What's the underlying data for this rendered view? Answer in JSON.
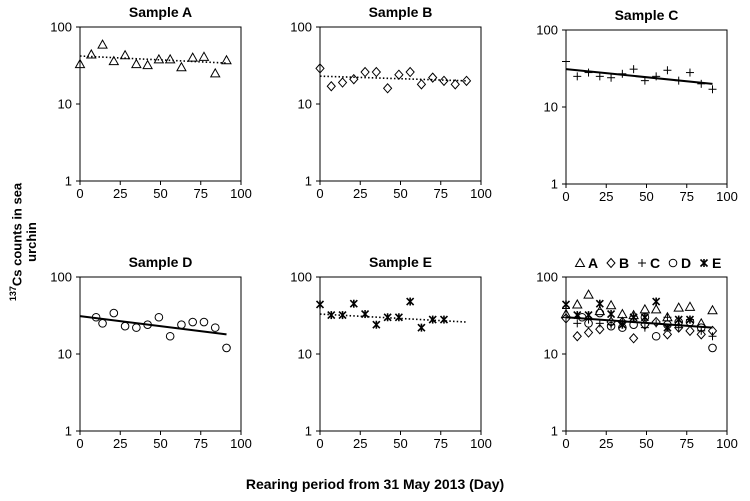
{
  "figure": {
    "ylabel_prefix": "137",
    "ylabel_text": "Cs counts in sea urchin",
    "xlabel": "Rearing period from 31 May 2013 (Day)"
  },
  "chart_data": [
    {
      "type": "scatter",
      "title": "Sample A",
      "series_key": "A",
      "marker": "triangle",
      "xlim": [
        0,
        100
      ],
      "ylim": [
        1,
        100
      ],
      "yscale": "log",
      "xticks": [
        0,
        25,
        50,
        75,
        100
      ],
      "yticks": [
        1,
        10,
        100
      ],
      "points": [
        [
          0,
          33
        ],
        [
          7,
          44
        ],
        [
          14,
          59
        ],
        [
          21,
          36
        ],
        [
          28,
          43
        ],
        [
          35,
          33
        ],
        [
          42,
          32
        ],
        [
          49,
          38
        ],
        [
          56,
          38
        ],
        [
          63,
          30
        ],
        [
          70,
          40
        ],
        [
          77,
          41
        ],
        [
          84,
          25
        ],
        [
          91,
          37
        ]
      ],
      "trend": {
        "style": "dotted",
        "from": [
          0,
          42
        ],
        "to": [
          91,
          34
        ]
      }
    },
    {
      "type": "scatter",
      "title": "Sample B",
      "series_key": "B",
      "marker": "diamond",
      "xlim": [
        0,
        100
      ],
      "ylim": [
        1,
        100
      ],
      "yscale": "log",
      "xticks": [
        0,
        25,
        50,
        75,
        100
      ],
      "yticks": [
        1,
        10,
        100
      ],
      "points": [
        [
          0,
          29
        ],
        [
          7,
          17
        ],
        [
          14,
          19
        ],
        [
          21,
          21
        ],
        [
          28,
          26
        ],
        [
          35,
          26
        ],
        [
          42,
          16
        ],
        [
          49,
          24
        ],
        [
          56,
          26
        ],
        [
          63,
          18
        ],
        [
          70,
          22
        ],
        [
          77,
          20
        ],
        [
          84,
          18
        ],
        [
          91,
          20
        ]
      ],
      "trend": {
        "style": "dotted",
        "from": [
          0,
          23
        ],
        "to": [
          91,
          20
        ]
      }
    },
    {
      "type": "scatter",
      "title": "Sample C",
      "series_key": "C",
      "marker": "plus",
      "xlim": [
        0,
        100
      ],
      "ylim": [
        1,
        100
      ],
      "yscale": "log",
      "xticks": [
        0,
        25,
        50,
        75,
        100
      ],
      "yticks": [
        1,
        10,
        100
      ],
      "points": [
        [
          0,
          39
        ],
        [
          7,
          25
        ],
        [
          14,
          28
        ],
        [
          21,
          25
        ],
        [
          28,
          24
        ],
        [
          35,
          27
        ],
        [
          42,
          31
        ],
        [
          49,
          22
        ],
        [
          56,
          25
        ],
        [
          63,
          30
        ],
        [
          70,
          22
        ],
        [
          77,
          28
        ],
        [
          84,
          20
        ],
        [
          91,
          17
        ]
      ],
      "trend": {
        "style": "solid",
        "from": [
          0,
          31
        ],
        "to": [
          91,
          20
        ]
      }
    },
    {
      "type": "scatter",
      "title": "Sample D",
      "series_key": "D",
      "marker": "circle",
      "xlim": [
        0,
        100
      ],
      "ylim": [
        1,
        100
      ],
      "yscale": "log",
      "xticks": [
        0,
        25,
        50,
        75,
        100
      ],
      "yticks": [
        1,
        10,
        100
      ],
      "points": [
        [
          10,
          30
        ],
        [
          14,
          25
        ],
        [
          21,
          34
        ],
        [
          28,
          23
        ],
        [
          35,
          22
        ],
        [
          42,
          24
        ],
        [
          49,
          30
        ],
        [
          56,
          17
        ],
        [
          63,
          24
        ],
        [
          70,
          26
        ],
        [
          77,
          26
        ],
        [
          84,
          22
        ],
        [
          91,
          12
        ]
      ],
      "trend": {
        "style": "solid",
        "from": [
          0,
          31
        ],
        "to": [
          91,
          18
        ]
      }
    },
    {
      "type": "scatter",
      "title": "Sample E",
      "series_key": "E",
      "marker": "asterisk",
      "xlim": [
        0,
        100
      ],
      "ylim": [
        1,
        100
      ],
      "yscale": "log",
      "xticks": [
        0,
        25,
        50,
        75,
        100
      ],
      "yticks": [
        1,
        10,
        100
      ],
      "points": [
        [
          0,
          44
        ],
        [
          7,
          32
        ],
        [
          14,
          32
        ],
        [
          21,
          45
        ],
        [
          28,
          33
        ],
        [
          35,
          24
        ],
        [
          42,
          30
        ],
        [
          49,
          30
        ],
        [
          56,
          48
        ],
        [
          63,
          22
        ],
        [
          70,
          28
        ],
        [
          77,
          28
        ]
      ],
      "trend": {
        "style": "dotted",
        "from": [
          0,
          33
        ],
        "to": [
          91,
          26
        ]
      }
    },
    {
      "type": "scatter",
      "title": "",
      "combined": true,
      "xlim": [
        0,
        100
      ],
      "ylim": [
        1,
        100
      ],
      "yscale": "log",
      "xticks": [
        0,
        25,
        50,
        75,
        100
      ],
      "yticks": [
        1,
        10,
        100
      ],
      "legend": [
        {
          "label": "A",
          "marker": "triangle"
        },
        {
          "label": "B",
          "marker": "diamond"
        },
        {
          "label": "C",
          "marker": "plus"
        },
        {
          "label": "D",
          "marker": "circle"
        },
        {
          "label": "E",
          "marker": "asterisk"
        }
      ],
      "trend": {
        "style": "solid",
        "from": [
          0,
          30
        ],
        "to": [
          91,
          22
        ]
      }
    }
  ]
}
